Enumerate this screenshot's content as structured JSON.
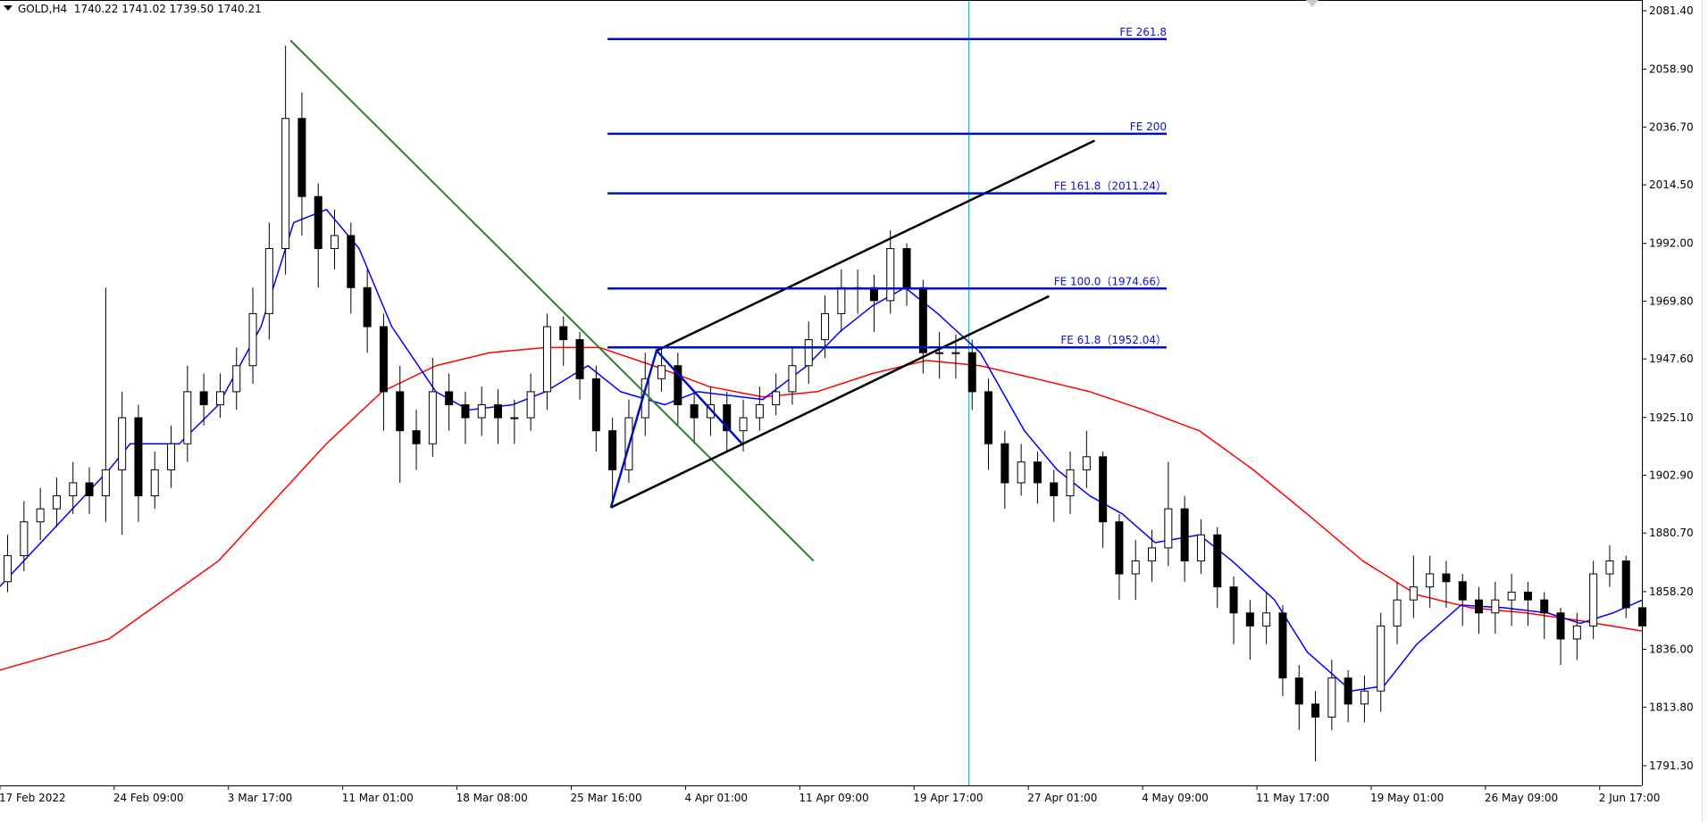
{
  "header": {
    "symbol": "GOLD,H4",
    "ohlc": "1740.22 1741.02 1739.50 1740.21"
  },
  "colors": {
    "bull": "#ffffff",
    "bear": "#000000",
    "ma_fast": "#0000ff",
    "ma_slow": "#ff0000",
    "trend": "#2e7d32",
    "channel": "#000000",
    "fib": "#0010c0",
    "vline": "#00c8e0"
  },
  "chart_data": {
    "type": "candlestick",
    "ylim": [
      1784,
      2086
    ],
    "yticks": [
      "2081.40",
      "2058.90",
      "2036.70",
      "2014.50",
      "1992.00",
      "1969.80",
      "1947.60",
      "1925.10",
      "1902.90",
      "1880.70",
      "1858.20",
      "1836.00",
      "1813.80",
      "1791.30"
    ],
    "xticks": [
      {
        "i": -0.47,
        "label": "17 Feb 2022"
      },
      {
        "i": 6.52,
        "label": "24 Feb 09:00"
      },
      {
        "i": 13.51,
        "label": "3 Mar 17:00"
      },
      {
        "i": 20.5,
        "label": "11 Mar 01:00"
      },
      {
        "i": 27.49,
        "label": "18 Mar 08:00"
      },
      {
        "i": 34.48,
        "label": "25 Mar 16:00"
      },
      {
        "i": 41.47,
        "label": "4 Apr 01:00"
      },
      {
        "i": 48.46,
        "label": "11 Apr 09:00"
      },
      {
        "i": 55.45,
        "label": "19 Apr 17:00"
      },
      {
        "i": 62.44,
        "label": "27 Apr 01:00"
      },
      {
        "i": 69.43,
        "label": "4 May 09:00"
      },
      {
        "i": 76.42,
        "label": "11 May 17:00"
      },
      {
        "i": 83.41,
        "label": "19 May 01:00"
      },
      {
        "i": 90.4,
        "label": "26 May 09:00"
      },
      {
        "i": 97.39,
        "label": "2 Jun 17:00"
      }
    ],
    "first_open": 1862,
    "close": [
      1872,
      1885,
      1890,
      1895,
      1900,
      1895,
      1905,
      1925,
      1895,
      1905,
      1915,
      1935,
      1930,
      1935,
      1945,
      1965,
      1990,
      2040,
      2010,
      1990,
      1995,
      1975,
      1960,
      1935,
      1920,
      1915,
      1935,
      1930,
      1925,
      1930,
      1925,
      1925,
      1935,
      1960,
      1955,
      1940,
      1920,
      1905,
      1925,
      1940,
      1945,
      1930,
      1925,
      1930,
      1920,
      1925,
      1930,
      1935,
      1945,
      1955,
      1965,
      1975,
      1975,
      1970,
      1990,
      1975,
      1950,
      1950,
      1950,
      1935,
      1915,
      1900,
      1908,
      1900,
      1895,
      1905,
      1910,
      1885,
      1865,
      1870,
      1875,
      1890,
      1870,
      1880,
      1860,
      1850,
      1845,
      1850,
      1825,
      1815,
      1810,
      1825,
      1815,
      1820,
      1845,
      1855,
      1860,
      1865,
      1862,
      1855,
      1850,
      1855,
      1858,
      1855,
      1850,
      1840,
      1845,
      1865,
      1870,
      1852,
      1845
    ],
    "high": [
      1880,
      1893,
      1898,
      1902,
      1908,
      1906,
      1975,
      1935,
      1930,
      1912,
      1922,
      1945,
      1942,
      1942,
      1952,
      1975,
      2000,
      2068,
      2050,
      2015,
      2005,
      2000,
      1982,
      1965,
      1945,
      1928,
      1948,
      1942,
      1935,
      1937,
      1936,
      1932,
      1942,
      1965,
      1964,
      1958,
      1945,
      1925,
      1932,
      1950,
      1952,
      1950,
      1935,
      1937,
      1935,
      1932,
      1937,
      1942,
      1952,
      1962,
      1972,
      1982,
      1982,
      1980,
      1997,
      1992,
      1978,
      1958,
      1957,
      1955,
      1940,
      1920,
      1915,
      1912,
      1905,
      1912,
      1920,
      1912,
      1888,
      1878,
      1882,
      1908,
      1895,
      1886,
      1883,
      1864,
      1855,
      1858,
      1853,
      1830,
      1820,
      1832,
      1828,
      1826,
      1850,
      1862,
      1872,
      1872,
      1870,
      1865,
      1860,
      1862,
      1865,
      1862,
      1858,
      1852,
      1850,
      1870,
      1876,
      1872,
      1853
    ],
    "low": [
      1858,
      1866,
      1878,
      1883,
      1888,
      1888,
      1885,
      1880,
      1885,
      1890,
      1898,
      1908,
      1922,
      1925,
      1928,
      1938,
      1955,
      1980,
      1995,
      1975,
      1982,
      1965,
      1950,
      1920,
      1900,
      1905,
      1910,
      1920,
      1915,
      1918,
      1915,
      1915,
      1920,
      1928,
      1945,
      1932,
      1912,
      1892,
      1900,
      1918,
      1935,
      1922,
      1915,
      1918,
      1912,
      1912,
      1920,
      1926,
      1930,
      1938,
      1948,
      1958,
      1965,
      1958,
      1965,
      1968,
      1942,
      1940,
      1940,
      1928,
      1905,
      1890,
      1895,
      1892,
      1885,
      1888,
      1898,
      1875,
      1855,
      1855,
      1862,
      1868,
      1862,
      1865,
      1852,
      1838,
      1832,
      1838,
      1818,
      1805,
      1793,
      1805,
      1808,
      1808,
      1812,
      1838,
      1848,
      1852,
      1852,
      1845,
      1842,
      1842,
      1845,
      1845,
      1840,
      1830,
      1832,
      1840,
      1860,
      1848,
      1840
    ],
    "ma_fast": [
      [
        -0.5,
        1860
      ],
      [
        6.2,
        1905
      ],
      [
        7.5,
        1915
      ],
      [
        10.5,
        1915
      ],
      [
        12.9,
        1930
      ],
      [
        15.5,
        1960
      ],
      [
        17.5,
        2000
      ],
      [
        19.5,
        2005
      ],
      [
        21.5,
        1990
      ],
      [
        23.5,
        1960
      ],
      [
        26.2,
        1935
      ],
      [
        28.2,
        1928
      ],
      [
        30.9,
        1930
      ],
      [
        32.9,
        1935
      ],
      [
        35.5,
        1945
      ],
      [
        37.5,
        1935
      ],
      [
        40.2,
        1930
      ],
      [
        42.2,
        1935
      ],
      [
        46.2,
        1932
      ],
      [
        48.9,
        1945
      ],
      [
        50.9,
        1958
      ],
      [
        52.9,
        1968
      ],
      [
        54.9,
        1975
      ],
      [
        56.9,
        1965
      ],
      [
        59.5,
        1950
      ],
      [
        62.2,
        1920
      ],
      [
        64.2,
        1905
      ],
      [
        66.2,
        1895
      ],
      [
        68.2,
        1888
      ],
      [
        70.2,
        1877
      ],
      [
        72.9,
        1880
      ],
      [
        74.9,
        1870
      ],
      [
        77.5,
        1855
      ],
      [
        79.5,
        1835
      ],
      [
        82.2,
        1820
      ],
      [
        84.2,
        1822
      ],
      [
        86.2,
        1838
      ],
      [
        88.9,
        1853
      ],
      [
        91.5,
        1852
      ],
      [
        94.2,
        1850
      ],
      [
        96.2,
        1846
      ],
      [
        98.2,
        1850
      ],
      [
        100,
        1855
      ]
    ],
    "ma_slow": [
      [
        -0.5,
        1828
      ],
      [
        6.2,
        1840
      ],
      [
        12.9,
        1870
      ],
      [
        19.5,
        1915
      ],
      [
        22.9,
        1935
      ],
      [
        26.2,
        1945
      ],
      [
        29.5,
        1950
      ],
      [
        32.9,
        1952
      ],
      [
        36.2,
        1952
      ],
      [
        39.5,
        1945
      ],
      [
        42.9,
        1937
      ],
      [
        46.2,
        1933
      ],
      [
        49.5,
        1935
      ],
      [
        52.9,
        1942
      ],
      [
        56.2,
        1947
      ],
      [
        59.5,
        1945
      ],
      [
        62.9,
        1940
      ],
      [
        66.2,
        1935
      ],
      [
        69.5,
        1928
      ],
      [
        72.9,
        1920
      ],
      [
        76.2,
        1905
      ],
      [
        79.5,
        1888
      ],
      [
        82.9,
        1870
      ],
      [
        86.2,
        1857
      ],
      [
        89.5,
        1852
      ],
      [
        92.9,
        1850
      ],
      [
        96.2,
        1847
      ],
      [
        100,
        1843
      ]
    ],
    "trendline": [
      [
        17.3,
        2070
      ],
      [
        49.3,
        1870
      ]
    ],
    "channel_lower": [
      [
        36.9,
        1890.5
      ],
      [
        63.7,
        1971.7
      ]
    ],
    "channel_upper": [
      [
        39.7,
        1950.8
      ],
      [
        66.5,
        2031.5
      ]
    ],
    "fib_points": [
      [
        36.9,
        1890.5
      ],
      [
        39.7,
        1950.8
      ],
      [
        44.9,
        1915.2
      ]
    ],
    "fib_range": [
      36.7,
      70.9
    ],
    "fib_levels": [
      {
        "price": 2070.5,
        "label": "FE 261.8"
      },
      {
        "price": 2034.1,
        "label": "FE 200"
      },
      {
        "price": 2011.24,
        "label": "FE 161.8（2011.24）"
      },
      {
        "price": 1974.66,
        "label": "FE 100.0（1974.66）"
      },
      {
        "price": 1952.04,
        "label": "FE 61.8（1952.04）"
      }
    ],
    "vline_i": 58.8
  }
}
